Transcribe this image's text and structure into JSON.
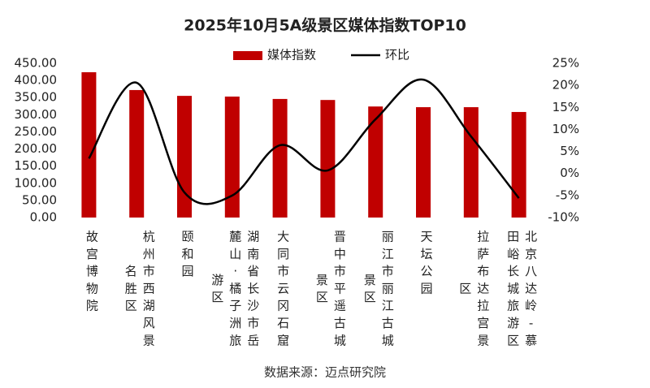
{
  "chart_data": {
    "type": "bar_line",
    "title": "2025年10月5A级景区媒体指数TOP10",
    "source": "数据来源：迈点研究院",
    "categories": [
      "故宫博物院",
      "杭州市西湖风景名胜区",
      "颐和园",
      "湖南省长沙市岳麓山·橘子洲旅游区",
      "大同市云冈石窟",
      "晋中市平遥古城景区",
      "丽江市丽江古城景区",
      "天坛公园",
      "拉萨布达拉宫景区",
      "北京八达岭-慕田峪长城旅游区"
    ],
    "series": [
      {
        "name": "媒体指数",
        "type": "bar",
        "color": "#c00000",
        "values": [
          424,
          372,
          355,
          353,
          346,
          343,
          324,
          322,
          322,
          308
        ]
      },
      {
        "name": "环比",
        "type": "line",
        "axis": "y2",
        "color": "#000000",
        "values": [
          3.4,
          20.6,
          -4.3,
          -5.0,
          6.4,
          0.7,
          12.3,
          21.3,
          8.4,
          -5.6
        ]
      }
    ],
    "ylim": [
      0,
      450
    ],
    "yticks": [
      {
        "value": 0,
        "label": "0.00"
      },
      {
        "value": 50,
        "label": "50.00"
      },
      {
        "value": 100,
        "label": "100.00"
      },
      {
        "value": 150,
        "label": "150.00"
      },
      {
        "value": 200,
        "label": "200.00"
      },
      {
        "value": 250,
        "label": "250.00"
      },
      {
        "value": 300,
        "label": "300.00"
      },
      {
        "value": 350,
        "label": "350.00"
      },
      {
        "value": 400,
        "label": "400.00"
      },
      {
        "value": 450,
        "label": "450.00"
      }
    ],
    "y2lim": [
      -10,
      25
    ],
    "y2ticks": [
      {
        "value": -10,
        "label": "-10%"
      },
      {
        "value": -5,
        "label": "-5%"
      },
      {
        "value": 0,
        "label": "0%"
      },
      {
        "value": 5,
        "label": "5%"
      },
      {
        "value": 10,
        "label": "10%"
      },
      {
        "value": 15,
        "label": "15%"
      },
      {
        "value": 20,
        "label": "20%"
      },
      {
        "value": 25,
        "label": "25%"
      }
    ],
    "legend": "top"
  }
}
